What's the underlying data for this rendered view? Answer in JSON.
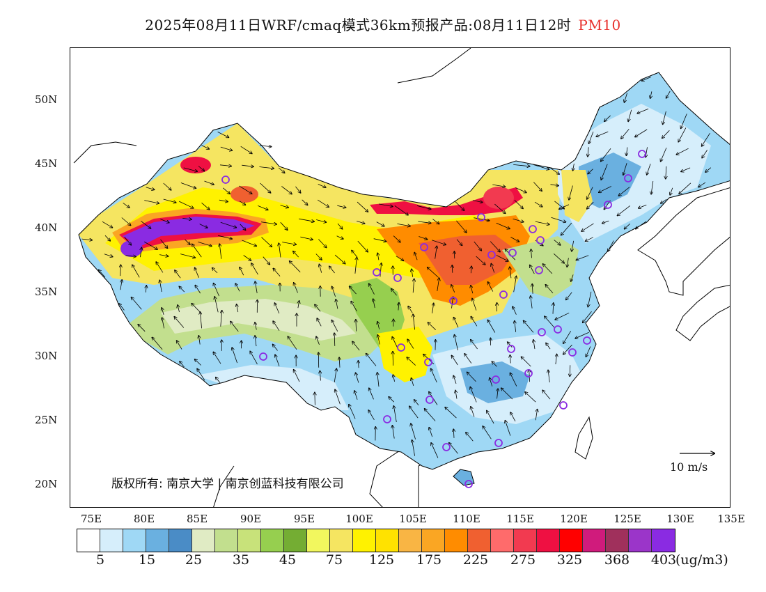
{
  "title": {
    "main": "2025年08月11日WRF/cmaq模式36km预报产品:08月11日12时",
    "variable": "PM10"
  },
  "axes": {
    "lat_labels": [
      "50N",
      "45N",
      "40N",
      "35N",
      "30N",
      "25N",
      "20N"
    ],
    "lon_labels": [
      "75E",
      "80E",
      "85E",
      "90E",
      "95E",
      "100E",
      "105E",
      "110E",
      "115E",
      "120E",
      "125E",
      "130E",
      "135E"
    ]
  },
  "copyright": "版权所有: 南京大学 | 南京创蓝科技有限公司",
  "wind_scale": {
    "label": "10 m/s"
  },
  "colorbar": {
    "colors": [
      "#ffffff",
      "#d6eefb",
      "#9fd8f5",
      "#6ab0e0",
      "#4a8cc6",
      "#e0ebc4",
      "#c2df8e",
      "#c8e27a",
      "#96cf4f",
      "#74ad33",
      "#f2f75e",
      "#f5e561",
      "#fff200",
      "#ffe200",
      "#f9b544",
      "#faa623",
      "#ff8c00",
      "#f06030",
      "#ff6b6b",
      "#f23a50",
      "#ef1042",
      "#ff0000",
      "#d01b7c",
      "#a0305c",
      "#9b35c9",
      "#8a2be2"
    ],
    "labels": [
      "5",
      "15",
      "25",
      "35",
      "45",
      "75",
      "125",
      "175",
      "225",
      "275",
      "325",
      "368",
      "403"
    ],
    "unit": "(ug/m3)"
  }
}
